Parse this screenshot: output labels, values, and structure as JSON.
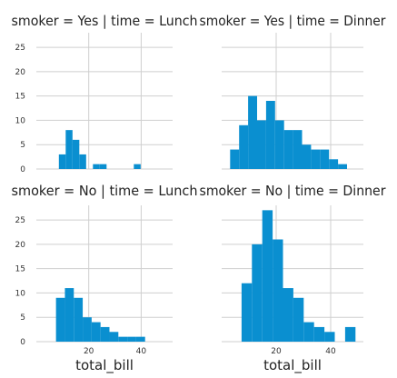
{
  "chart_data": [
    {
      "type": "bar",
      "title": "smoker = Yes | time = Lunch",
      "xlabel": "",
      "ylabel": "",
      "xlim": [
        0,
        52
      ],
      "ylim": [
        0,
        28
      ],
      "xticks": [],
      "yticks": [
        "0",
        "5",
        "10",
        "15",
        "20",
        "25"
      ],
      "bin_edges": [
        8.6,
        11.2,
        13.8,
        16.4,
        19.0,
        21.6,
        24.2,
        26.8,
        29.4,
        32.0,
        34.6,
        37.2,
        39.8,
        42.4
      ],
      "values": [
        3,
        8,
        6,
        3,
        0,
        1,
        1,
        0,
        0,
        0,
        0,
        1,
        0
      ],
      "grid": true,
      "color": "#0a8fd0"
    },
    {
      "type": "bar",
      "title": "smoker = Yes | time = Dinner",
      "xlabel": "",
      "ylabel": "",
      "xlim": [
        0,
        52
      ],
      "ylim": [
        0,
        28
      ],
      "xticks": [],
      "yticks": [],
      "bin_edges": [
        3.1,
        6.4,
        9.7,
        13.0,
        16.3,
        19.6,
        22.9,
        26.2,
        29.5,
        32.8,
        36.1,
        39.4,
        42.7,
        46.0,
        49.3
      ],
      "values": [
        4,
        9,
        15,
        10,
        14,
        10,
        8,
        8,
        5,
        4,
        4,
        2,
        1,
        0
      ],
      "grid": true,
      "color": "#0a8fd0"
    },
    {
      "type": "bar",
      "title": "smoker = No | time = Lunch",
      "xlabel": "total_bill",
      "ylabel": "",
      "xlim": [
        0,
        52
      ],
      "ylim": [
        0,
        28
      ],
      "xticks": [
        "20",
        "40"
      ],
      "yticks": [
        "0",
        "5",
        "10",
        "15",
        "20",
        "25"
      ],
      "bin_edges": [
        7.5,
        10.9,
        14.3,
        17.7,
        21.1,
        24.5,
        27.9,
        31.3,
        34.7,
        38.1,
        41.5
      ],
      "values": [
        9,
        11,
        9,
        5,
        4,
        3,
        2,
        1,
        1,
        1
      ],
      "grid": true,
      "color": "#0a8fd0"
    },
    {
      "type": "bar",
      "title": "smoker = No | time = Dinner",
      "xlabel": "total_bill",
      "ylabel": "",
      "xlim": [
        0,
        52
      ],
      "ylim": [
        0,
        28
      ],
      "xticks": [
        "20",
        "40"
      ],
      "yticks": [],
      "bin_edges": [
        7.3,
        11.1,
        14.9,
        18.7,
        22.5,
        26.3,
        30.1,
        33.9,
        37.7,
        41.5,
        45.3,
        49.1
      ],
      "values": [
        12,
        20,
        27,
        21,
        11,
        9,
        4,
        3,
        2,
        0,
        3
      ],
      "grid": true,
      "color": "#0a8fd0"
    }
  ]
}
